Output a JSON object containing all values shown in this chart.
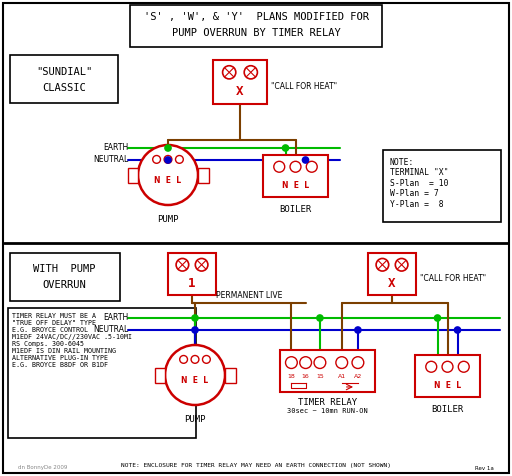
{
  "title_line1": "'S' , 'W', & 'Y'  PLANS MODIFIED FOR",
  "title_line2": "PUMP OVERRUN BY TIMER RELAY",
  "bg_color": "#ffffff",
  "red": "#cc0000",
  "green": "#00bb00",
  "blue": "#0000cc",
  "brown": "#7B3F00",
  "black": "#000000",
  "gray": "#888888",
  "note_top": "NOTE:\nTERMINAL \"X\"\nS-Plan  = 10\nW-Plan = 7\nY-Plan =  8",
  "note_bot": "TIMER RELAY MUST BE A\n\"TRUE OFF DELAY\" TYPE\nE.G. BROYCE CONTROL\nM1EDF 24VAC/DC//230VAC .5-10MI\nRS Comps. 300-6045\nM1EDF IS DIN RAIL MOUNTING\nALTERNATIVE PLUG-IN TYPE\nE.G. BROYCE B8DF OR B1DF",
  "bottom_note": "NOTE: ENCLOSURE FOR TIMER RELAY MAY NEED AN EARTH CONNECTION (NOT SHOWN)",
  "watermark": "dn BonnyDe 2009",
  "rev": "Rev 1a"
}
